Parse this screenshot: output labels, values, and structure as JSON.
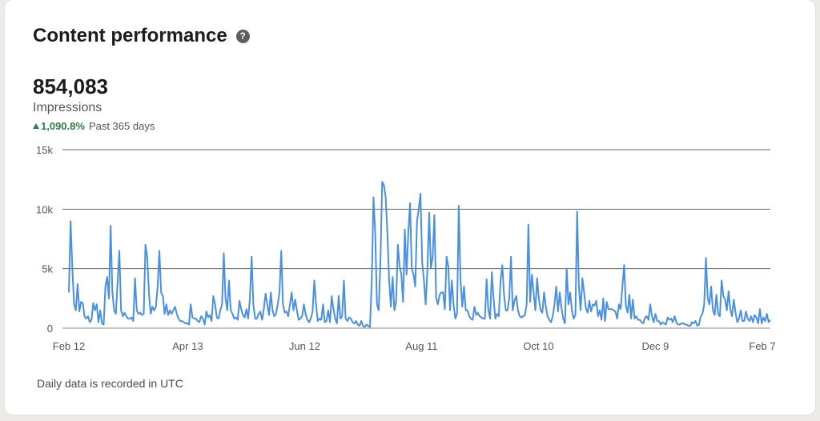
{
  "card": {
    "title": "Content performance",
    "help_icon": "?",
    "total": "854,083",
    "metric": "Impressions",
    "change": "1,090.8%",
    "period": "Past 365 days",
    "footnote": "Daily data is recorded in UTC"
  },
  "chart_data": {
    "type": "line",
    "series": [
      {
        "values": [
          3000,
          9000,
          5000,
          2000,
          1500,
          3700,
          1400,
          2200,
          2100,
          1000,
          800,
          1000,
          500,
          700,
          2100,
          1500,
          2000,
          500,
          1500,
          400,
          300,
          3500,
          4300,
          2500,
          8600,
          3000,
          1500,
          1200,
          3900,
          6500,
          1500,
          1000,
          1300,
          1000,
          800,
          800,
          900,
          600,
          4200,
          1500,
          1200,
          1300,
          1100,
          1200,
          7000,
          6000,
          3000,
          1200,
          1800,
          1500,
          1800,
          3500,
          6500,
          3000,
          2700,
          1200,
          2000,
          1100,
          1500,
          1200,
          1500,
          1800,
          1200,
          800,
          600,
          600,
          500,
          400,
          400,
          300,
          2000,
          900,
          800,
          800,
          600,
          500,
          1000,
          800,
          300,
          1400,
          900,
          1100,
          600,
          2700,
          2000,
          900,
          800,
          1500,
          2000,
          6300,
          2500,
          1500,
          4000,
          1500,
          1200,
          800,
          900,
          700,
          2300,
          1600,
          1100,
          900,
          1600,
          800,
          2500,
          6000,
          2000,
          800,
          800,
          1200,
          1400,
          700,
          1600,
          2900,
          2000,
          1100,
          3000,
          1500,
          1000,
          1200,
          2000,
          3000,
          6500,
          2000,
          1300,
          1400,
          1000,
          2000,
          3000,
          1500,
          2400,
          1500,
          700,
          800,
          1000,
          2000,
          1200,
          700,
          500,
          800,
          1400,
          4000,
          2000,
          600,
          800,
          700,
          2000,
          500,
          600,
          1500,
          500,
          2700,
          1600,
          800,
          400,
          2700,
          800,
          1000,
          4000,
          800,
          600,
          900,
          800,
          500,
          400,
          600,
          300,
          200,
          600,
          200,
          100,
          300,
          200,
          100,
          3900,
          11000,
          8000,
          2000,
          1500,
          5600,
          12300,
          12000,
          11000,
          8000,
          4000,
          1800,
          4300,
          1500,
          2200,
          7000,
          5200,
          4500,
          2200,
          8300,
          4500,
          8000,
          10500,
          5000,
          4500,
          3500,
          9000,
          10000,
          11300,
          5500,
          4000,
          2000,
          5000,
          9700,
          5000,
          6000,
          9500,
          2500,
          2000,
          2800,
          3000,
          3000,
          1600,
          6000,
          5200,
          1500,
          4000,
          2000,
          800,
          1200,
          10300,
          4000,
          1800,
          3500,
          1500,
          1500,
          1000,
          800,
          700,
          1800,
          1100,
          1300,
          1000,
          900,
          800,
          800,
          4100,
          1500,
          800,
          4700,
          2500,
          800,
          1200,
          1000,
          4000,
          5300,
          2800,
          1500,
          1500,
          2500,
          6000,
          1500,
          2300,
          2700,
          1500,
          1000,
          900,
          1000,
          1100,
          2000,
          8700,
          2200,
          4500,
          3000,
          1500,
          4200,
          2500,
          1500,
          1300,
          3000,
          1800,
          1000,
          700,
          500,
          1000,
          2000,
          3500,
          1400,
          3000,
          1700,
          800,
          400,
          5000,
          2000,
          3000,
          1500,
          800,
          1100,
          9800,
          3500,
          1500,
          4200,
          3000,
          1700,
          1300,
          2300,
          1400,
          2000,
          1900,
          2300,
          1000,
          1500,
          700,
          2500,
          600,
          2200,
          1600,
          1600,
          1600,
          1500,
          1400,
          800,
          2000,
          1600,
          3500,
          5300,
          1900,
          1300,
          2800,
          800,
          2400,
          800,
          1000,
          700,
          700,
          500,
          400,
          900,
          1000,
          700,
          2000,
          1000,
          500,
          1200,
          600,
          600,
          300,
          500,
          400,
          300,
          900,
          700,
          800,
          500,
          1000,
          500,
          300,
          300,
          400,
          400,
          300,
          300,
          200,
          200,
          500,
          400,
          600,
          200,
          300,
          1000,
          1200,
          2000,
          5900,
          2500,
          2000,
          3500,
          1500,
          1100,
          2800,
          1200,
          1000,
          4000,
          2700,
          2400,
          1500,
          3100,
          1600,
          1000,
          2400,
          1300,
          500,
          800,
          1500,
          600,
          600,
          1400,
          800,
          600,
          1000,
          500,
          1100,
          900,
          400,
          1600,
          400,
          900,
          600,
          1200,
          500,
          700
        ]
      }
    ],
    "x_tick_labels": [
      "Feb 12",
      "Apr 13",
      "Jun 12",
      "Aug 11",
      "Oct 10",
      "Dec 9",
      "Feb 7"
    ],
    "x_tick_days": [
      0,
      61,
      121,
      181,
      241,
      301,
      360
    ],
    "y_ticks": [
      0,
      5000,
      10000,
      15000
    ],
    "y_tick_labels": [
      "0",
      "5k",
      "10k",
      "15k"
    ],
    "ylim": [
      0,
      15000
    ],
    "grid": "horizontal",
    "line_color": "#4a90e2"
  }
}
